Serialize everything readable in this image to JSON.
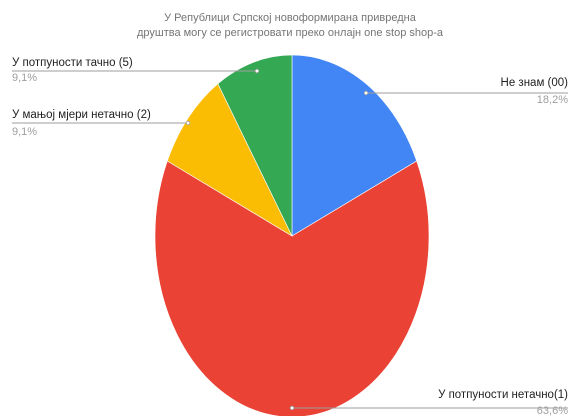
{
  "chart_data": {
    "type": "pie",
    "title": [
      "У Републици Српској новоформирана привредна",
      "друштва могу се регистровати преко онлајн one stop shop-a"
    ],
    "slices": [
      {
        "label": "Не знам (00)",
        "value": 18.2,
        "value_label": "18,2%",
        "color": "#4285f4"
      },
      {
        "label": "У потпуности нетачно(1)",
        "value": 63.6,
        "value_label": "63,6%",
        "color": "#ea4335"
      },
      {
        "label": "У мањој мјери нетачно (2)",
        "value": 9.1,
        "value_label": "9,1%",
        "color": "#fbbc04"
      },
      {
        "label": "У потпуности тачно (5)",
        "value": 9.1,
        "value_label": "9,1%",
        "color": "#34a853"
      }
    ],
    "legend": "none"
  }
}
